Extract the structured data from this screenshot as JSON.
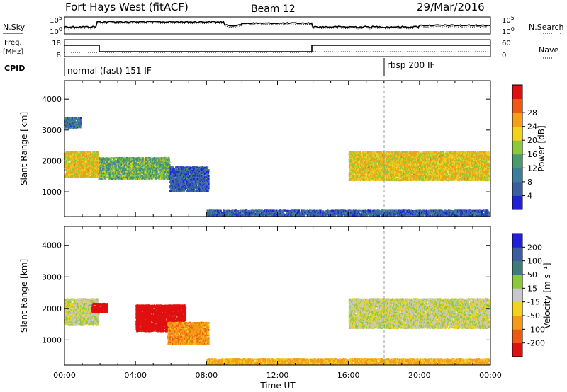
{
  "header": {
    "station": "Fort Hays West (fitACF)",
    "beam": "Beam 12",
    "date": "29/Mar/2016"
  },
  "top_panels": {
    "nsky_label": "N.Sky",
    "nsearch_label": "N.Search",
    "freq_label_1": "Freq.",
    "freq_label_2": "[MHz]",
    "nave_label": "Nave",
    "cpid_label": "CPID",
    "noise_ticks_left": [
      "10^5",
      "10^0"
    ],
    "noise_ticks_right": [
      "10^5",
      "10^0"
    ],
    "freq_ticks": [
      "18",
      "8"
    ],
    "nave_ticks": [
      "60",
      "0"
    ],
    "cpid_segments": [
      {
        "label": "normal (fast) 151 IF",
        "start_hour": 0
      },
      {
        "label": "rbsp 200 IF",
        "start_hour": 18
      }
    ]
  },
  "chart_data": [
    {
      "type": "heatmap",
      "panel": "power",
      "xlabel": "",
      "ylabel": "Slant Range [km]",
      "xlim": [
        0,
        24
      ],
      "ylim": [
        200,
        4600
      ],
      "y_ticks": [
        1000,
        2000,
        3000,
        4000
      ],
      "colorbar": {
        "label": "Power [dB]",
        "ticks": [
          "4",
          "8",
          "12",
          "16",
          "20",
          "24",
          "28"
        ],
        "range": [
          0,
          32
        ],
        "colors": [
          "#2020d8",
          "#3a5fa0",
          "#3d7c9b",
          "#4a9a6e",
          "#8cc83c",
          "#f2d21c",
          "#f5a018",
          "#ee5a12",
          "#e01010"
        ]
      },
      "echo_regions": [
        {
          "t": [
            0.0,
            1.9
          ],
          "r": [
            1500,
            2350
          ],
          "value_db": 20
        },
        {
          "t": [
            0.0,
            0.9
          ],
          "r": [
            3100,
            3450
          ],
          "value_db": 8
        },
        {
          "t": [
            1.9,
            5.9
          ],
          "r": [
            1450,
            2150
          ],
          "value_db": 14
        },
        {
          "t": [
            5.9,
            8.1
          ],
          "r": [
            1050,
            1850
          ],
          "value_db": 6
        },
        {
          "t": [
            8.0,
            23.9
          ],
          "r": [
            250,
            450
          ],
          "value_db": 6
        },
        {
          "t": [
            16.0,
            23.9
          ],
          "r": [
            1400,
            2350
          ],
          "value_db": 20
        }
      ]
    },
    {
      "type": "heatmap",
      "panel": "velocity",
      "xlabel": "Time UT",
      "ylabel": "Slant Range [km]",
      "xlim": [
        0,
        24
      ],
      "ylim": [
        200,
        4600
      ],
      "x_ticks": [
        "00:00",
        "04:00",
        "08:00",
        "12:00",
        "16:00",
        "20:00",
        "00:00"
      ],
      "y_ticks": [
        1000,
        2000,
        3000,
        4000
      ],
      "colorbar": {
        "label": "Velocity [m s⁻¹]",
        "ticks": [
          "-200",
          "-100",
          "-50",
          "-15",
          "15",
          "50",
          "100",
          "200"
        ],
        "colors": [
          "#e01010",
          "#ee5a12",
          "#f59a18",
          "#f2d21c",
          "#c8c8c8",
          "#8cc83c",
          "#3d7c7b",
          "#3a5fa0",
          "#2020d8"
        ]
      },
      "echo_regions": [
        {
          "t": [
            0.0,
            1.9
          ],
          "r": [
            1500,
            2350
          ],
          "value_ms": 0
        },
        {
          "t": [
            1.5,
            2.4
          ],
          "r": [
            1900,
            2200
          ],
          "value_ms": -250
        },
        {
          "t": [
            4.0,
            6.8
          ],
          "r": [
            1300,
            2150
          ],
          "value_ms": -250
        },
        {
          "t": [
            5.8,
            8.1
          ],
          "r": [
            900,
            1600
          ],
          "value_ms": -80
        },
        {
          "t": [
            8.0,
            23.9
          ],
          "r": [
            250,
            450
          ],
          "value_ms": -60
        },
        {
          "t": [
            16.0,
            23.9
          ],
          "r": [
            1400,
            2350
          ],
          "value_ms": 0
        }
      ]
    }
  ]
}
